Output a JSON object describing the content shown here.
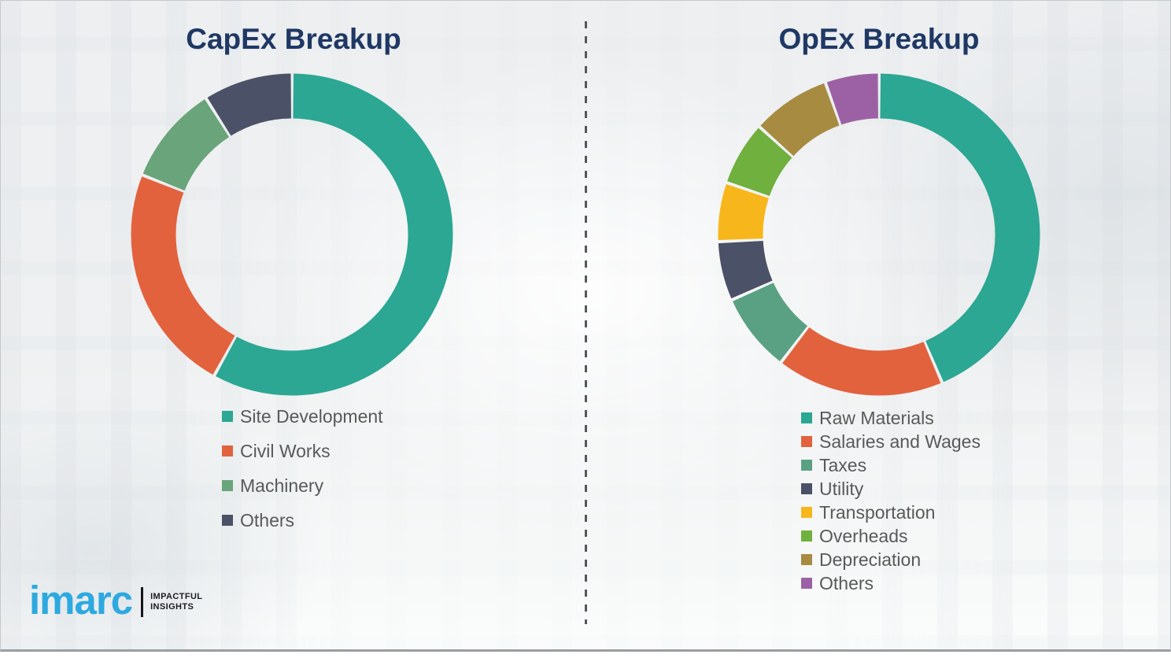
{
  "chart_data": [
    {
      "type": "pie",
      "subtype": "donut",
      "title": "CapEx Breakup",
      "title_color": "#1f3864",
      "categories": [
        "Site Development",
        "Civil Works",
        "Machinery",
        "Others"
      ],
      "values": [
        58,
        23,
        10,
        9
      ],
      "colors": [
        "#2ba793",
        "#e2623e",
        "#69a47a",
        "#4b5166"
      ],
      "start_angle_deg": 0,
      "direction": "clockwise",
      "legend_position": "below-left",
      "legend_text_color": "#595959"
    },
    {
      "type": "pie",
      "subtype": "donut",
      "title": "OpEx Breakup",
      "title_color": "#1f3864",
      "categories": [
        "Raw Materials",
        "Salaries and Wages",
        "Taxes",
        "Utility",
        "Transportation",
        "Overheads",
        "Depreciation",
        "Others"
      ],
      "values": [
        44,
        17,
        8,
        6,
        6,
        6.5,
        8,
        5.5
      ],
      "colors": [
        "#2ba793",
        "#e2623e",
        "#5aa183",
        "#4b5166",
        "#f7b71c",
        "#6fb03e",
        "#a68b41",
        "#9c61a4"
      ],
      "start_angle_deg": 0,
      "direction": "clockwise",
      "legend_position": "below-left",
      "legend_text_color": "#595959"
    }
  ],
  "branding": {
    "logo_text": "imarc",
    "logo_color": "#2da9e0",
    "tagline_line1": "IMPACTFUL",
    "tagline_line2": "INSIGHTS"
  }
}
